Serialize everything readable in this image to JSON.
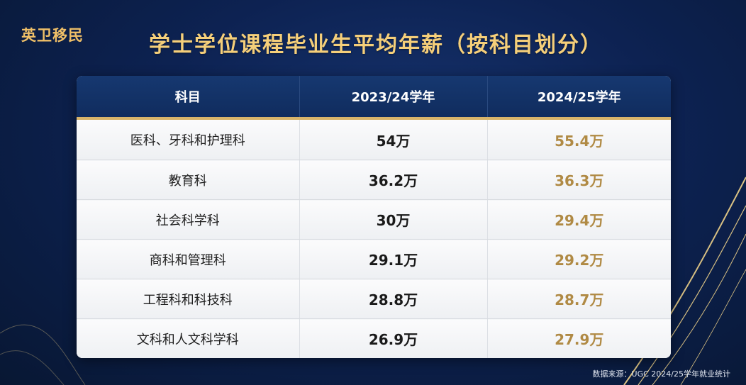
{
  "brand": "英卫移民",
  "source": "数据来源：UGC 2024/25学年就业统计",
  "colors": {
    "accent_gold": "#f5cf7a",
    "value_gold": "#b08a44",
    "header_navy": "#163870",
    "background": "#0d2252"
  },
  "chart_data": {
    "type": "table",
    "title": "学士学位课程毕业生平均年薪（按科目划分）",
    "columns": [
      "科目",
      "2023/24学年",
      "2024/25学年"
    ],
    "rows": [
      [
        "医科、牙科和护理科",
        "54万",
        "55.4万"
      ],
      [
        "教育科",
        "36.2万",
        "36.3万"
      ],
      [
        "社会科学科",
        "30万",
        "29.4万"
      ],
      [
        "商科和管理科",
        "29.1万",
        "29.2万"
      ],
      [
        "工程科和科技科",
        "28.8万",
        "28.7万"
      ],
      [
        "文科和人文科学科",
        "26.9万",
        "27.9万"
      ]
    ]
  }
}
